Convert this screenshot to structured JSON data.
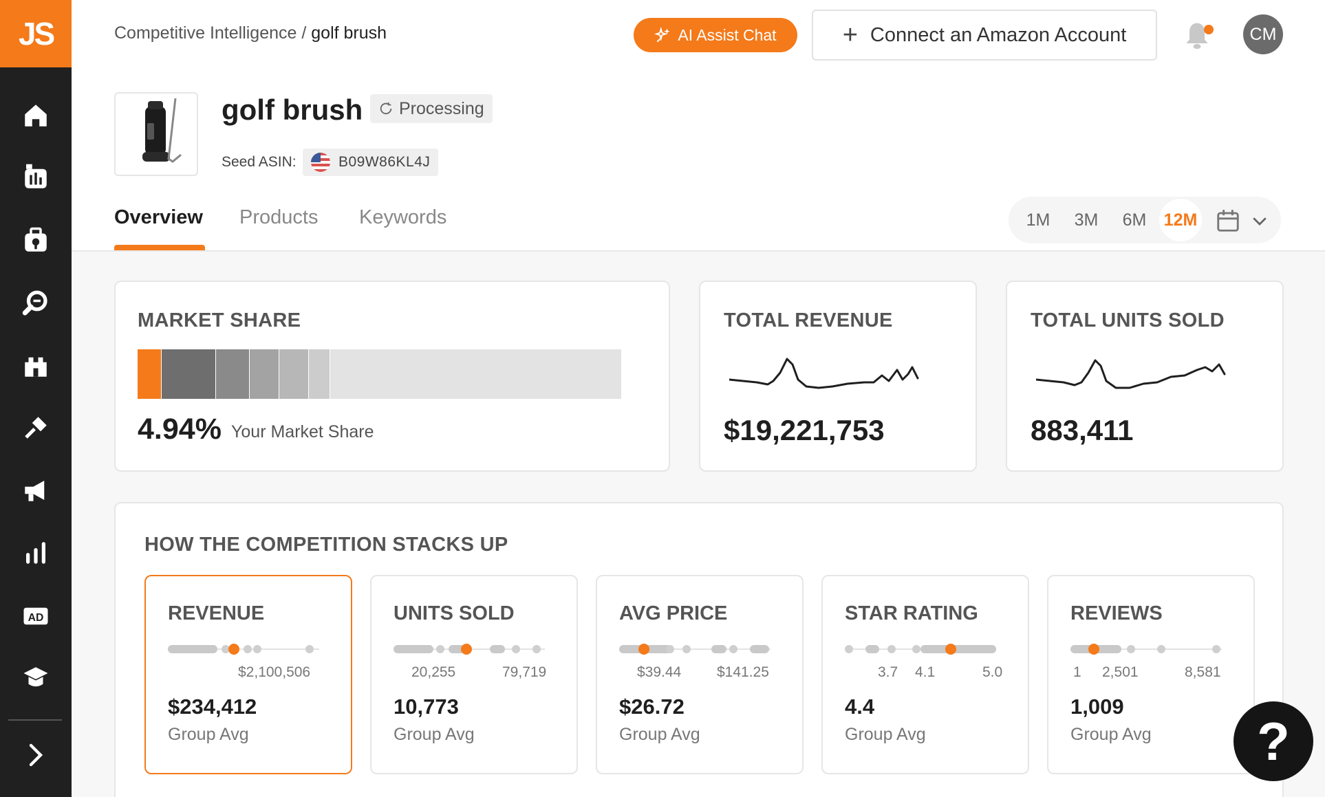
{
  "app": {
    "logo_text": "JS"
  },
  "sidebar": {
    "items": [
      {
        "icon": "home-icon"
      },
      {
        "icon": "product-database-icon"
      },
      {
        "icon": "product-tracker-icon"
      },
      {
        "icon": "keyword-search-icon"
      },
      {
        "icon": "competitive-intelligence-icon"
      },
      {
        "icon": "listing-builder-icon"
      },
      {
        "icon": "promotions-icon"
      },
      {
        "icon": "analytics-icon"
      },
      {
        "icon": "advertising-icon"
      },
      {
        "icon": "academy-icon"
      }
    ],
    "expand_icon": "chevron-right-icon"
  },
  "topbar": {
    "breadcrumb_parent": "Competitive Intelligence /",
    "breadcrumb_current": "golf brush",
    "ai_button": "AI Assist Chat",
    "connect_button": "Connect an Amazon Account",
    "avatar_initials": "CM"
  },
  "product": {
    "title": "golf brush",
    "status": "Processing",
    "seed_label": "Seed ASIN:",
    "asin": "B09W86KL4J"
  },
  "tabs": [
    {
      "label": "Overview",
      "active": true
    },
    {
      "label": "Products",
      "active": false
    },
    {
      "label": "Keywords",
      "active": false
    }
  ],
  "ranges": [
    "1M",
    "3M",
    "6M",
    "12M"
  ],
  "active_range": "12M",
  "market_share": {
    "title": "MARKET SHARE",
    "value": "4.94%",
    "label": "Your Market Share",
    "segments": [
      {
        "share": 4.94,
        "color": "#f47a1a"
      },
      {
        "share": 11.1,
        "color": "#6e6e6e"
      },
      {
        "share": 6.9,
        "color": "#8a8a8a"
      },
      {
        "share": 6.0,
        "color": "#a3a3a3"
      },
      {
        "share": 6.1,
        "color": "#b7b7b7"
      },
      {
        "share": 4.3,
        "color": "#cccccc"
      },
      {
        "share": 60.66,
        "color": "#e3e3e3"
      }
    ]
  },
  "total_revenue": {
    "title": "TOTAL REVENUE",
    "value": "$19,221,753"
  },
  "total_units": {
    "title": "TOTAL UNITS SOLD",
    "value": "883,411"
  },
  "competition": {
    "title": "HOW THE COMPETITION STACKS UP",
    "avg_label": "Group Avg",
    "metrics": [
      {
        "title": "REVENUE",
        "value": "$234,412",
        "ticks": [
          "$2,100,506"
        ],
        "selected": true
      },
      {
        "title": "UNITS SOLD",
        "value": "10,773",
        "ticks": [
          "20,255",
          "79,719"
        ],
        "selected": false
      },
      {
        "title": "AVG PRICE",
        "value": "$26.72",
        "ticks": [
          "$39.44",
          "$141.25"
        ],
        "selected": false
      },
      {
        "title": "STAR RATING",
        "value": "4.4",
        "ticks": [
          "3.7",
          "4.1",
          "5.0"
        ],
        "selected": false
      },
      {
        "title": "REVIEWS",
        "value": "1,009",
        "ticks": [
          "1",
          "2,501",
          "8,581"
        ],
        "selected": false
      }
    ]
  },
  "help": {
    "label": "?"
  }
}
